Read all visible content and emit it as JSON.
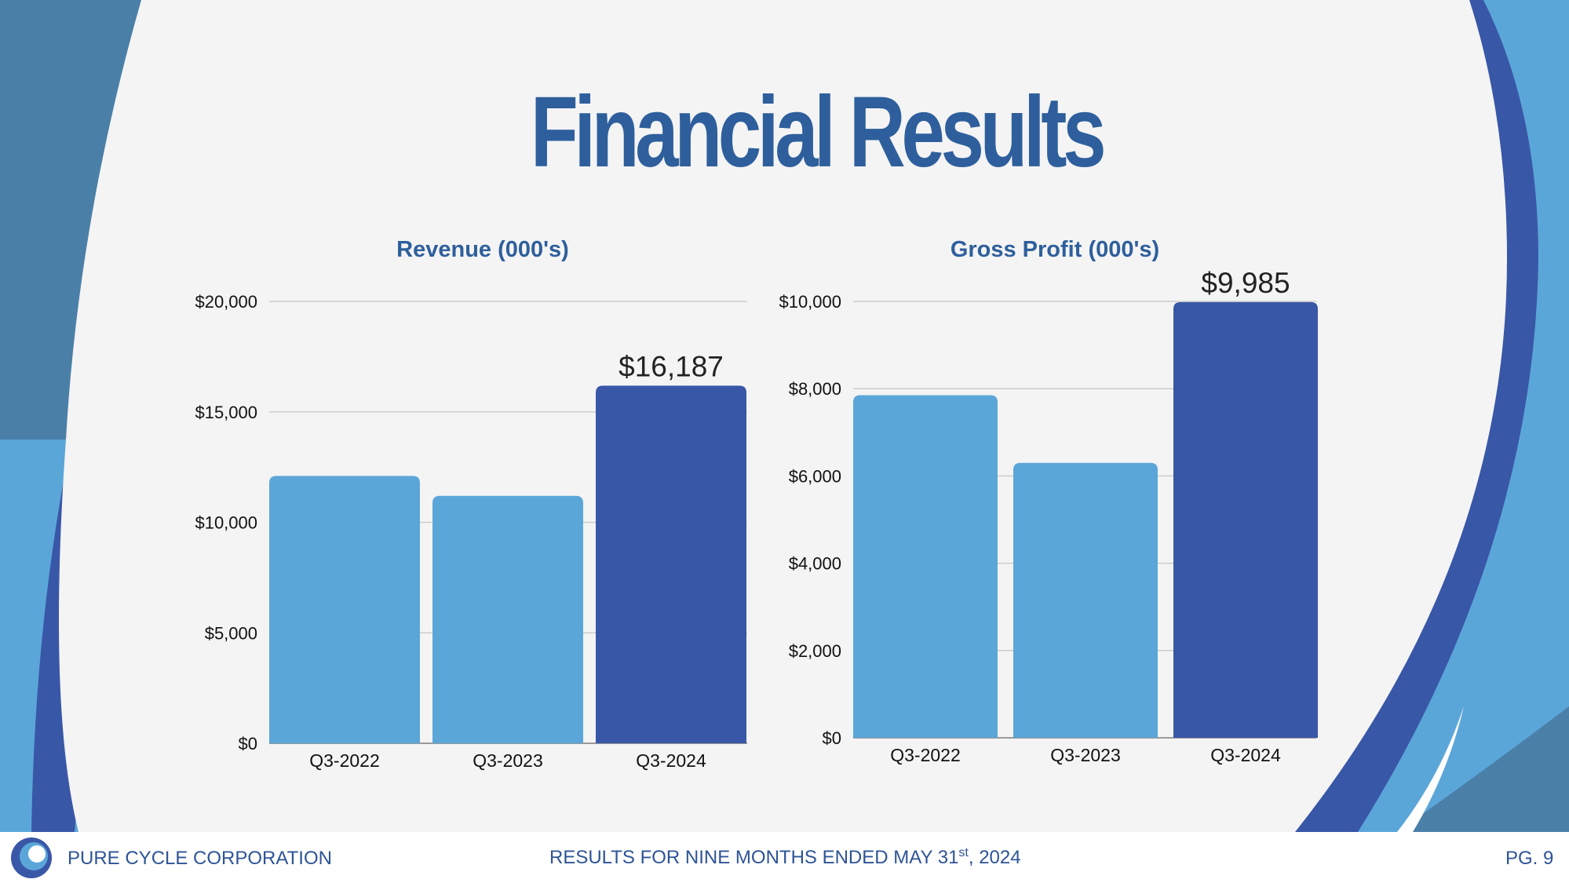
{
  "slide": {
    "title": "Financial Results"
  },
  "colors": {
    "page_bg": "#f4f4f4",
    "accent_light": "#5ba6d9",
    "accent_dark": "#3957a7",
    "title_blue": "#2e5f9c",
    "grid": "#cccccc"
  },
  "chart_data": [
    {
      "type": "bar",
      "title": "Revenue (000's)",
      "categories": [
        "Q3-2022",
        "Q3-2023",
        "Q3-2024"
      ],
      "values": [
        12100,
        11200,
        16187
      ],
      "ylim": [
        0,
        20000
      ],
      "yticks": [
        0,
        5000,
        10000,
        15000,
        20000
      ],
      "ytick_labels": [
        "$0",
        "$5,000",
        "$10,000",
        "$15,000",
        "$20,000"
      ],
      "data_labels": [
        null,
        null,
        "$16,187"
      ],
      "highlight_index": 2,
      "xlabel": "",
      "ylabel": "",
      "grid": true
    },
    {
      "type": "bar",
      "title": "Gross Profit (000's)",
      "categories": [
        "Q3-2022",
        "Q3-2023",
        "Q3-2024"
      ],
      "values": [
        7850,
        6300,
        9985
      ],
      "ylim": [
        0,
        10000
      ],
      "yticks": [
        0,
        2000,
        4000,
        6000,
        8000,
        10000
      ],
      "ytick_labels": [
        "$0",
        "$2,000",
        "$4,000",
        "$6,000",
        "$8,000",
        "$10,000"
      ],
      "data_labels": [
        null,
        null,
        "$9,985"
      ],
      "highlight_index": 2,
      "xlabel": "",
      "ylabel": "",
      "grid": true
    }
  ],
  "footer": {
    "company": "PURE CYCLE CORPORATION",
    "results_prefix": "RESULTS FOR NINE MONTHS ENDED MAY 31",
    "results_sup": "st",
    "results_suffix": ", 2024",
    "page": "PG. 9"
  }
}
